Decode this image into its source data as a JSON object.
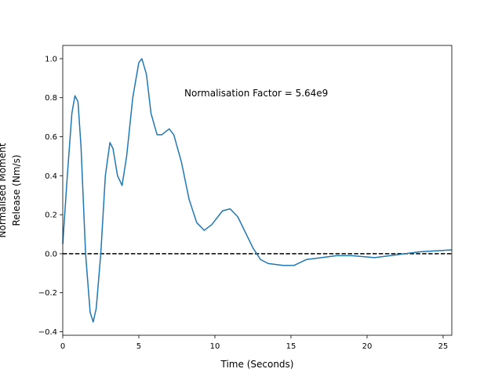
{
  "chart_data": {
    "type": "line",
    "xlabel": "Time (Seconds)",
    "ylabel": [
      "Normalised Moment",
      "Release (Nm/s)"
    ],
    "annotation": "Normalisation Factor = 5.64e9",
    "x": [
      0,
      0.3,
      0.6,
      0.8,
      1.0,
      1.2,
      1.5,
      1.8,
      2.0,
      2.2,
      2.5,
      2.8,
      3.1,
      3.3,
      3.6,
      3.9,
      4.2,
      4.6,
      5.0,
      5.2,
      5.5,
      5.8,
      6.2,
      6.5,
      7.0,
      7.3,
      7.8,
      8.3,
      8.8,
      9.3,
      9.8,
      10.5,
      11.0,
      11.5,
      12.0,
      12.5,
      13.0,
      13.5,
      14.5,
      15.2,
      16.0,
      17.0,
      18.0,
      19.0,
      20.5,
      21.5,
      22.5,
      23.5,
      24.5,
      25.57
    ],
    "series": [
      {
        "color": "#1f77b4",
        "values": [
          0.05,
          0.4,
          0.72,
          0.81,
          0.78,
          0.55,
          0.0,
          -0.3,
          -0.35,
          -0.28,
          0.0,
          0.4,
          0.57,
          0.54,
          0.4,
          0.35,
          0.5,
          0.8,
          0.98,
          1.0,
          0.92,
          0.72,
          0.61,
          0.61,
          0.64,
          0.61,
          0.47,
          0.28,
          0.16,
          0.12,
          0.15,
          0.22,
          0.23,
          0.19,
          0.11,
          0.03,
          -0.03,
          -0.05,
          -0.06,
          -0.06,
          -0.03,
          -0.02,
          -0.01,
          -0.01,
          -0.02,
          -0.01,
          0.0,
          0.01,
          0.015,
          0.02
        ]
      }
    ],
    "hline": 0,
    "xlim": [
      0,
      25.57
    ],
    "ylim": [
      -0.418,
      1.068
    ],
    "xticks": [
      0,
      5,
      10,
      15,
      20,
      25
    ],
    "yticks": [
      {
        "value": -0.4,
        "label": "−0.4"
      },
      {
        "value": -0.2,
        "label": "−0.2"
      },
      {
        "value": 0,
        "label": "0.0"
      },
      0.2,
      0.4,
      0.6,
      0.8,
      {
        "value": 1,
        "label": "1.0"
      }
    ]
  }
}
